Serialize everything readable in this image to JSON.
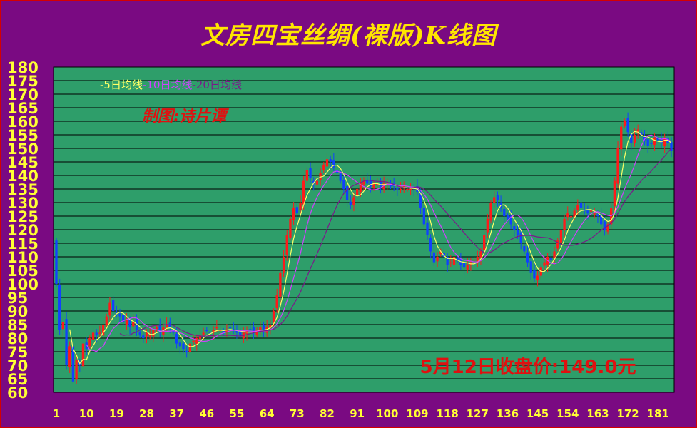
{
  "page": {
    "title": "文房四宝丝绸(裸版)K线图"
  },
  "chart_data": {
    "type": "candlestick",
    "title": "文房四宝丝绸(裸版)K线图",
    "ylim": [
      60,
      180
    ],
    "y_ticks": [
      60,
      65,
      70,
      75,
      80,
      85,
      90,
      95,
      100,
      105,
      110,
      115,
      120,
      125,
      130,
      135,
      140,
      145,
      150,
      155,
      160,
      165,
      170,
      175,
      180
    ],
    "x_ticks": [
      1,
      10,
      19,
      28,
      37,
      46,
      55,
      64,
      73,
      82,
      91,
      100,
      109,
      118,
      127,
      136,
      145,
      154,
      163,
      172,
      181
    ],
    "x_range": [
      1,
      185
    ],
    "legend": [
      {
        "label": "-5日均线",
        "color": "#ffff66"
      },
      {
        "label": "-10日均线",
        "color": "#d040ff"
      },
      {
        "label": "-20日均线",
        "color": "#7a1a8a"
      }
    ],
    "annotation_credit": "制图:诗片谭",
    "annotation_close": "5月12日收盘价:149.0元",
    "colors": {
      "up": "#ff1a1a",
      "down": "#1040ff",
      "background": "#2e9e6a",
      "grid": "#000000",
      "axis_text": "#ffff33"
    },
    "close_key_points": [
      [
        1,
        100
      ],
      [
        2,
        83
      ],
      [
        3,
        86
      ],
      [
        4,
        70
      ],
      [
        5,
        77
      ],
      [
        6,
        64
      ],
      [
        7,
        72
      ],
      [
        8,
        70
      ],
      [
        9,
        78
      ],
      [
        10,
        76
      ],
      [
        11,
        80
      ],
      [
        12,
        82
      ],
      [
        13,
        81
      ],
      [
        14,
        82
      ],
      [
        15,
        85
      ],
      [
        16,
        88
      ],
      [
        17,
        93
      ],
      [
        18,
        90
      ],
      [
        19,
        89
      ],
      [
        20,
        88
      ],
      [
        21,
        86
      ],
      [
        22,
        87
      ],
      [
        23,
        84
      ],
      [
        24,
        86
      ],
      [
        25,
        83
      ],
      [
        26,
        81
      ],
      [
        27,
        80
      ],
      [
        28,
        82
      ],
      [
        29,
        81
      ],
      [
        30,
        83
      ],
      [
        31,
        84
      ],
      [
        32,
        82
      ],
      [
        33,
        84
      ],
      [
        34,
        85
      ],
      [
        35,
        84
      ],
      [
        36,
        82
      ],
      [
        37,
        78
      ],
      [
        38,
        77
      ],
      [
        39,
        76
      ],
      [
        40,
        75
      ],
      [
        41,
        78
      ],
      [
        42,
        79
      ],
      [
        43,
        80
      ],
      [
        44,
        81
      ],
      [
        45,
        82
      ],
      [
        46,
        83
      ],
      [
        47,
        82
      ],
      [
        48,
        83
      ],
      [
        49,
        84
      ],
      [
        50,
        83
      ],
      [
        51,
        82
      ],
      [
        52,
        83
      ],
      [
        53,
        84
      ],
      [
        54,
        83
      ],
      [
        55,
        82
      ],
      [
        56,
        81
      ],
      [
        57,
        82
      ],
      [
        58,
        83
      ],
      [
        59,
        83
      ],
      [
        60,
        82
      ],
      [
        61,
        83
      ],
      [
        62,
        84
      ],
      [
        63,
        83
      ],
      [
        64,
        84
      ],
      [
        65,
        85
      ],
      [
        66,
        90
      ],
      [
        67,
        96
      ],
      [
        68,
        104
      ],
      [
        69,
        110
      ],
      [
        70,
        118
      ],
      [
        71,
        124
      ],
      [
        72,
        128
      ],
      [
        73,
        126
      ],
      [
        74,
        130
      ],
      [
        75,
        138
      ],
      [
        76,
        142
      ],
      [
        77,
        139
      ],
      [
        78,
        137
      ],
      [
        79,
        138
      ],
      [
        80,
        141
      ],
      [
        81,
        144
      ],
      [
        82,
        146
      ],
      [
        83,
        145
      ],
      [
        84,
        143
      ],
      [
        85,
        141
      ],
      [
        86,
        138
      ],
      [
        87,
        135
      ],
      [
        88,
        131
      ],
      [
        89,
        129
      ],
      [
        90,
        132
      ],
      [
        91,
        135
      ],
      [
        92,
        137
      ],
      [
        93,
        138
      ],
      [
        94,
        137
      ],
      [
        95,
        136
      ],
      [
        96,
        137
      ],
      [
        97,
        137
      ],
      [
        98,
        136
      ],
      [
        99,
        137
      ],
      [
        100,
        137
      ],
      [
        101,
        136
      ],
      [
        102,
        136
      ],
      [
        103,
        135
      ],
      [
        104,
        135
      ],
      [
        105,
        136
      ],
      [
        106,
        135
      ],
      [
        107,
        135
      ],
      [
        108,
        135
      ],
      [
        109,
        134
      ],
      [
        110,
        128
      ],
      [
        111,
        122
      ],
      [
        112,
        118
      ],
      [
        113,
        112
      ],
      [
        114,
        108
      ],
      [
        115,
        110
      ],
      [
        116,
        112
      ],
      [
        117,
        110
      ],
      [
        118,
        107
      ],
      [
        119,
        108
      ],
      [
        120,
        110
      ],
      [
        121,
        109
      ],
      [
        122,
        107
      ],
      [
        123,
        106
      ],
      [
        124,
        107
      ],
      [
        125,
        108
      ],
      [
        126,
        109
      ],
      [
        127,
        110
      ],
      [
        128,
        112
      ],
      [
        129,
        118
      ],
      [
        130,
        124
      ],
      [
        131,
        130
      ],
      [
        132,
        132
      ],
      [
        133,
        131
      ],
      [
        134,
        128
      ],
      [
        135,
        125
      ],
      [
        136,
        124
      ],
      [
        137,
        122
      ],
      [
        138,
        120
      ],
      [
        139,
        118
      ],
      [
        140,
        115
      ],
      [
        141,
        112
      ],
      [
        142,
        108
      ],
      [
        143,
        104
      ],
      [
        144,
        102
      ],
      [
        145,
        103
      ],
      [
        146,
        106
      ],
      [
        147,
        108
      ],
      [
        148,
        110
      ],
      [
        149,
        109
      ],
      [
        150,
        112
      ],
      [
        151,
        116
      ],
      [
        152,
        120
      ],
      [
        153,
        124
      ],
      [
        154,
        126
      ],
      [
        155,
        125
      ],
      [
        156,
        127
      ],
      [
        157,
        129
      ],
      [
        158,
        128
      ],
      [
        159,
        127
      ],
      [
        160,
        126
      ],
      [
        161,
        127
      ],
      [
        162,
        126
      ],
      [
        163,
        125
      ],
      [
        164,
        122
      ],
      [
        165,
        120
      ],
      [
        166,
        122
      ],
      [
        167,
        128
      ],
      [
        168,
        138
      ],
      [
        169,
        150
      ],
      [
        170,
        158
      ],
      [
        171,
        160
      ],
      [
        172,
        156
      ],
      [
        173,
        152
      ],
      [
        174,
        155
      ],
      [
        175,
        157
      ],
      [
        176,
        155
      ],
      [
        177,
        153
      ],
      [
        178,
        151
      ],
      [
        179,
        152
      ],
      [
        180,
        154
      ],
      [
        181,
        153
      ],
      [
        182,
        152
      ],
      [
        183,
        154
      ],
      [
        184,
        152
      ],
      [
        185,
        149
      ]
    ]
  }
}
